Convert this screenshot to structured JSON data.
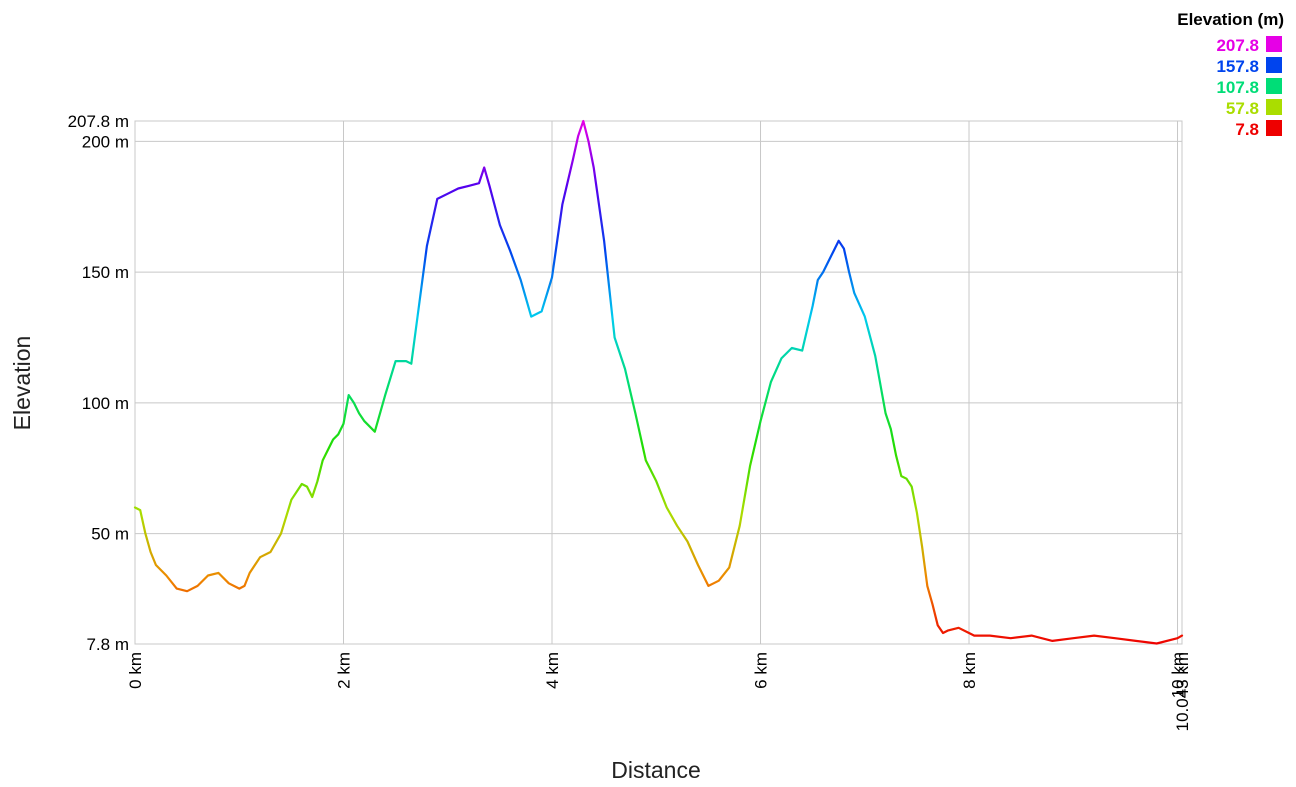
{
  "chart_data": {
    "type": "line",
    "xlabel": "Distance",
    "ylabel": "Elevation",
    "x_unit": "km",
    "y_unit": "m",
    "xlim": [
      0,
      10.043
    ],
    "ylim": [
      7.8,
      207.8
    ],
    "x_ticks": [
      {
        "value": 0,
        "label": "0 km"
      },
      {
        "value": 2,
        "label": "2 km"
      },
      {
        "value": 4,
        "label": "4 km"
      },
      {
        "value": 6,
        "label": "6 km"
      },
      {
        "value": 8,
        "label": "8 km"
      },
      {
        "value": 10,
        "label": "10 km"
      },
      {
        "value": 10.043,
        "label": "10.043 km"
      }
    ],
    "y_ticks": [
      {
        "value": 7.8,
        "label": "7.8 m"
      },
      {
        "value": 50,
        "label": "50 m"
      },
      {
        "value": 100,
        "label": "100 m"
      },
      {
        "value": 150,
        "label": "150 m"
      },
      {
        "value": 200,
        "label": "200 m"
      },
      {
        "value": 207.8,
        "label": "207.8 m"
      }
    ],
    "grid": true,
    "legend": {
      "title": "Elevation (m)",
      "placement": "top-right",
      "entries": [
        {
          "label": "207.8",
          "color": "#e600e6"
        },
        {
          "label": "157.8",
          "color": "#0044ee"
        },
        {
          "label": "107.8",
          "color": "#00dd77"
        },
        {
          "label": "57.8",
          "color": "#aadd00"
        },
        {
          "label": "7.8",
          "color": "#ee0000"
        }
      ]
    },
    "color_scale": [
      {
        "value": 7.8,
        "color": "#ee0000"
      },
      {
        "value": 32.8,
        "color": "#ee8800"
      },
      {
        "value": 57.8,
        "color": "#aadd00"
      },
      {
        "value": 82.8,
        "color": "#22dd00"
      },
      {
        "value": 107.8,
        "color": "#00dd77"
      },
      {
        "value": 132.8,
        "color": "#00ccee"
      },
      {
        "value": 157.8,
        "color": "#0044ee"
      },
      {
        "value": 182.8,
        "color": "#5500ee"
      },
      {
        "value": 207.8,
        "color": "#e600e6"
      }
    ],
    "series": [
      {
        "x": [
          0,
          0.05,
          0.1,
          0.15,
          0.2,
          0.3,
          0.4,
          0.5,
          0.6,
          0.7,
          0.8,
          0.9,
          1.0,
          1.05,
          1.1,
          1.15,
          1.2,
          1.3,
          1.4,
          1.5,
          1.6,
          1.65,
          1.7,
          1.75,
          1.8,
          1.9,
          1.95,
          2.0,
          2.05,
          2.1,
          2.15,
          2.2,
          2.3,
          2.4,
          2.5,
          2.6,
          2.65,
          2.7,
          2.8,
          2.9,
          3.0,
          3.1,
          3.2,
          3.3,
          3.35,
          3.4,
          3.5,
          3.6,
          3.7,
          3.8,
          3.9,
          4.0,
          4.1,
          4.2,
          4.25,
          4.3,
          4.35,
          4.4,
          4.5,
          4.6,
          4.7,
          4.8,
          4.9,
          5.0,
          5.1,
          5.2,
          5.3,
          5.4,
          5.5,
          5.55,
          5.6,
          5.7,
          5.8,
          5.9,
          6.0,
          6.1,
          6.2,
          6.3,
          6.4,
          6.5,
          6.55,
          6.6,
          6.7,
          6.75,
          6.8,
          6.85,
          6.9,
          7.0,
          7.1,
          7.2,
          7.25,
          7.3,
          7.35,
          7.4,
          7.45,
          7.5,
          7.55,
          7.6,
          7.65,
          7.7,
          7.75,
          7.8,
          7.9,
          8.0,
          8.05,
          8.2,
          8.4,
          8.6,
          8.8,
          9.0,
          9.2,
          9.4,
          9.6,
          9.8,
          10.0,
          10.043
        ],
        "y": [
          60,
          59,
          50,
          43,
          38,
          34,
          29,
          28,
          30,
          34,
          35,
          31,
          29,
          30,
          35,
          38,
          41,
          43,
          50,
          63,
          69,
          68,
          64,
          70,
          78,
          86,
          88,
          92,
          103,
          100,
          96,
          93,
          89,
          103,
          116,
          116,
          115,
          130,
          160,
          178,
          180,
          182,
          183,
          184,
          190,
          183,
          168,
          158,
          147,
          133,
          135,
          148,
          176,
          193,
          202,
          207.8,
          200,
          190,
          162,
          125,
          113,
          96,
          78,
          70,
          60,
          53,
          47,
          38,
          30,
          31,
          32,
          37,
          53,
          76,
          93,
          108,
          117,
          121,
          120,
          137,
          147,
          150,
          158,
          162,
          159,
          150,
          142,
          133,
          118,
          96,
          90,
          80,
          72,
          71,
          68,
          58,
          45,
          30,
          23,
          15,
          12,
          13,
          14,
          12,
          11,
          11,
          10,
          11,
          9,
          10,
          11,
          10,
          9,
          8,
          10,
          11
        ]
      }
    ]
  }
}
